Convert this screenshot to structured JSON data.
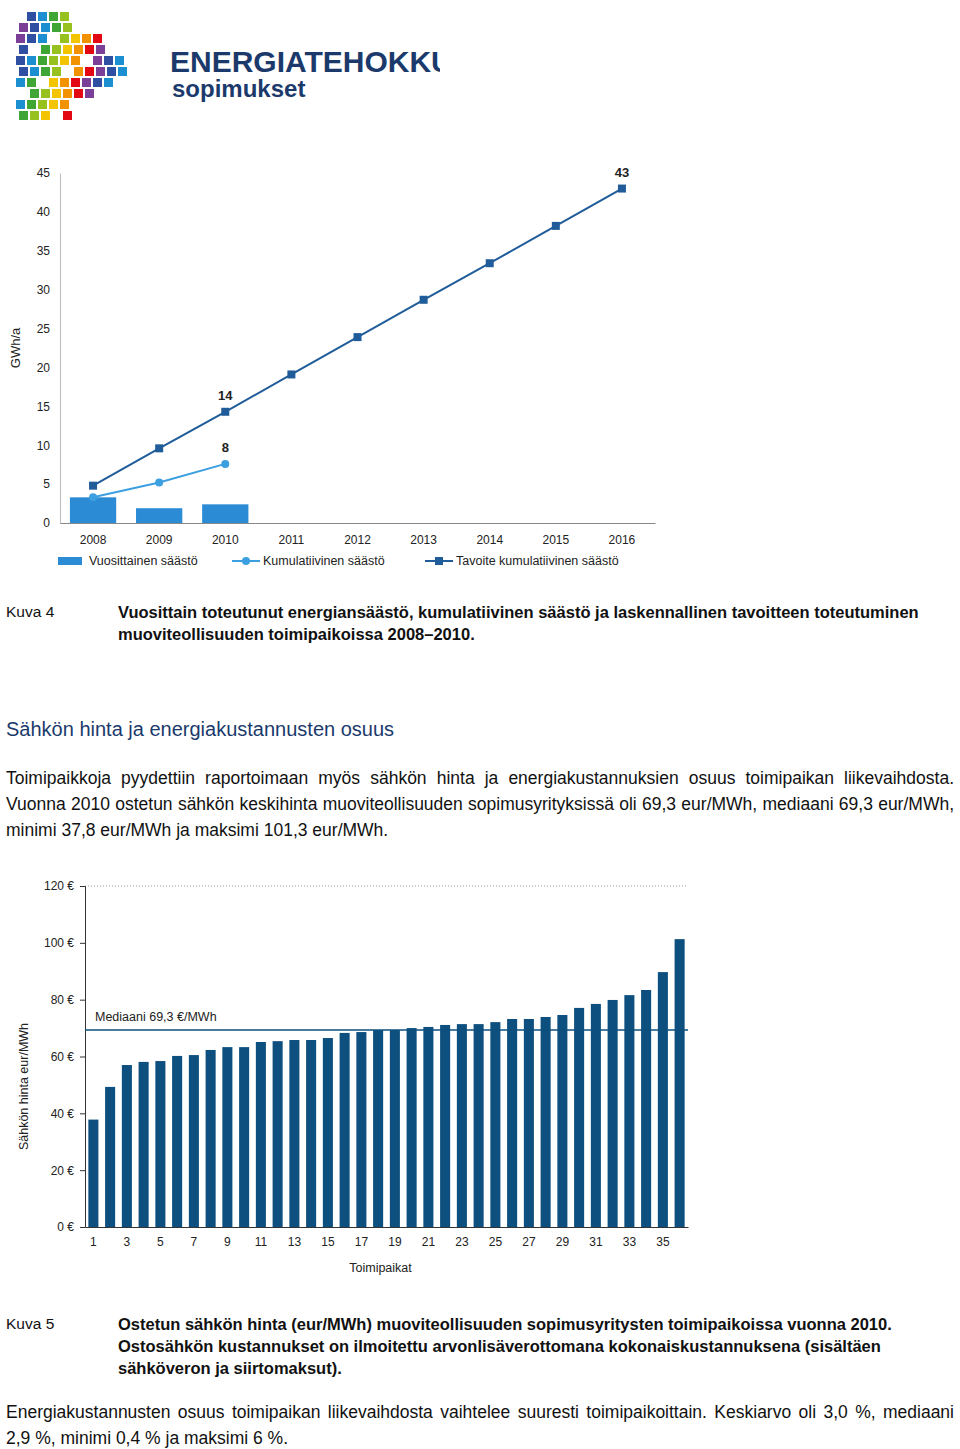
{
  "logo": {
    "line1": "ENERGIATEHOKKUUS-",
    "line2": "sopimukset"
  },
  "chart_data": [
    {
      "type": "bar",
      "y_label": "GWh/a",
      "categories": [
        "2008",
        "2009",
        "2010",
        "2011",
        "2012",
        "2013",
        "2014",
        "2015",
        "2016"
      ],
      "ylim": [
        0,
        45
      ],
      "yticks": [
        0,
        5,
        10,
        15,
        20,
        25,
        30,
        35,
        40,
        45
      ],
      "legend": "bottom",
      "series": [
        {
          "name": "Vuosittainen säästö",
          "type": "bar",
          "color": "#2b8bd4",
          "values": [
            3.3,
            1.9,
            2.4,
            null,
            null,
            null,
            null,
            null,
            null
          ]
        },
        {
          "name": "Kumulatiivinen säästö",
          "type": "line",
          "color": "#3c9fe0",
          "marker": "circle",
          "data_labels": true,
          "values": [
            3.3,
            5.2,
            7.6,
            null,
            null,
            null,
            null,
            null,
            null
          ],
          "value_labels": [
            null,
            null,
            "8",
            null,
            null,
            null,
            null,
            null,
            null
          ]
        },
        {
          "name": "Tavoite kumulatiivinen säästö",
          "type": "line",
          "color": "#1f5c99",
          "marker": "square",
          "data_labels": true,
          "values": [
            4.8,
            9.6,
            14.3,
            19.1,
            23.9,
            28.7,
            33.4,
            38.2,
            43
          ],
          "value_labels": [
            null,
            null,
            "14",
            null,
            null,
            null,
            null,
            null,
            "43"
          ]
        }
      ]
    },
    {
      "type": "bar",
      "y_label": "Sähkön hinta eur/MWh",
      "x_label": "Toimipaikat",
      "categories": [
        "1",
        null,
        "3",
        null,
        "5",
        null,
        "7",
        null,
        "9",
        null,
        "11",
        null,
        "13",
        null,
        "15",
        null,
        "17",
        null,
        "19",
        null,
        "21",
        null,
        "23",
        null,
        "25",
        null,
        "27",
        null,
        "29",
        null,
        "31",
        null,
        "33",
        null,
        "35",
        null
      ],
      "values": [
        37.8,
        49.3,
        57.0,
        58.1,
        58.4,
        60.2,
        60.5,
        62.3,
        63.3,
        63.3,
        65.1,
        65.4,
        65.8,
        65.8,
        66.5,
        68.3,
        68.6,
        69.3,
        69.3,
        70.0,
        70.4,
        71.1,
        71.4,
        71.4,
        72.1,
        73.2,
        73.2,
        73.9,
        74.6,
        77.1,
        78.5,
        79.9,
        81.6,
        83.4,
        89.7,
        101.3
      ],
      "color": "#0d4f7e",
      "ylim": [
        0,
        120
      ],
      "yticks": [
        {
          "value": 0,
          "label": "0 €"
        },
        {
          "value": 20,
          "label": "20 €"
        },
        {
          "value": 40,
          "label": "40 €"
        },
        {
          "value": 60,
          "label": "60 €"
        },
        {
          "value": 80,
          "label": "80 €"
        },
        {
          "value": 100,
          "label": "100 €"
        },
        {
          "value": 120,
          "label": "120 €"
        }
      ],
      "median": {
        "value": 69.3,
        "label": "Mediaani 69,3 €/MWh"
      }
    }
  ],
  "figure_4": {
    "label": "Kuva 4",
    "caption": "Vuosittain toteutunut energiansäästö, kumulatiivinen säästö ja laskennallinen tavoitteen toteutuminen muoviteollisuuden toimipaikoissa 2008–2010."
  },
  "heading": "Sähkön hinta ja energiakustannusten osuus",
  "paragraph_1": "Toimipaikkoja pyydettiin raportoimaan myös sähkön hinta ja energiakustannuksien osuus toimipaikan liikevaihdosta. Vuonna 2010 ostetun sähkön keskihinta muoviteollisuuden sopimusyrityksissä oli 69,3 eur/MWh, mediaani 69,3 eur/MWh, minimi 37,8 eur/MWh ja maksimi 101,3 eur/MWh.",
  "figure_5": {
    "label": "Kuva 5",
    "caption": "Ostetun sähkön hinta (eur/MWh) muoviteollisuuden sopimusyritysten toimipaikoissa vuonna 2010. Ostosähkön kustannukset on ilmoitettu arvonlisäverottomana kokonaiskustannuksena (sisältäen sähköveron ja siirtomaksut)."
  },
  "paragraph_2": "Energiakustannusten osuus toimipaikan liikevaihdosta vaihtelee suuresti toimipaikoittain. Keskiarvo oli 3,0 %, mediaani 2,9 %, minimi 0,4 % ja maksimi 6 %."
}
